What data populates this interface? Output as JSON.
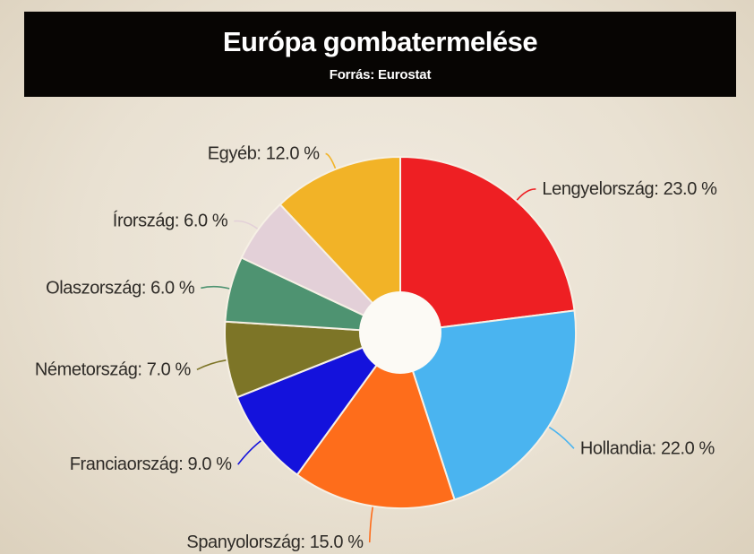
{
  "page": {
    "background_center_color": "#f1ebe0",
    "background_edge_color": "#dcd1bd"
  },
  "header": {
    "title": "Európa gombatermelése",
    "subtitle": "Forrás: Eurostat",
    "background_color": "#070503",
    "text_color": "#ffffff"
  },
  "chart_data": {
    "type": "pie",
    "title": "Európa gombatermelése",
    "subtitle": "Forrás: Eurostat",
    "donut": true,
    "hole_color": "#fcfaf5",
    "slice_stroke_color": "#f6f0e5",
    "label_color": "#2e2b27",
    "start_angle_deg": 0,
    "direction": "clockwise",
    "unit": "%",
    "slices": [
      {
        "name": "Lengyelország",
        "value": 23.0,
        "label": "Lengyelország: 23.0 %",
        "color": "#ee1f23"
      },
      {
        "name": "Hollandia",
        "value": 22.0,
        "label": "Hollandia: 22.0 %",
        "color": "#4ab4f0"
      },
      {
        "name": "Spanyolország",
        "value": 15.0,
        "label": "Spanyolország: 15.0 %",
        "color": "#fe6d1b"
      },
      {
        "name": "Franciaország",
        "value": 9.0,
        "label": "Franciaország: 9.0 %",
        "color": "#1412dc"
      },
      {
        "name": "Németország",
        "value": 7.0,
        "label": "Németország: 7.0 %",
        "color": "#7d7527"
      },
      {
        "name": "Olaszország",
        "value": 6.0,
        "label": "Olaszország: 6.0 %",
        "color": "#4e9371"
      },
      {
        "name": "Írország",
        "value": 6.0,
        "label": "Írország: 6.0 %",
        "color": "#e3d0d8"
      },
      {
        "name": "Egyéb",
        "value": 12.0,
        "label": "Egyéb: 12.0 %",
        "color": "#f2b327"
      }
    ]
  }
}
